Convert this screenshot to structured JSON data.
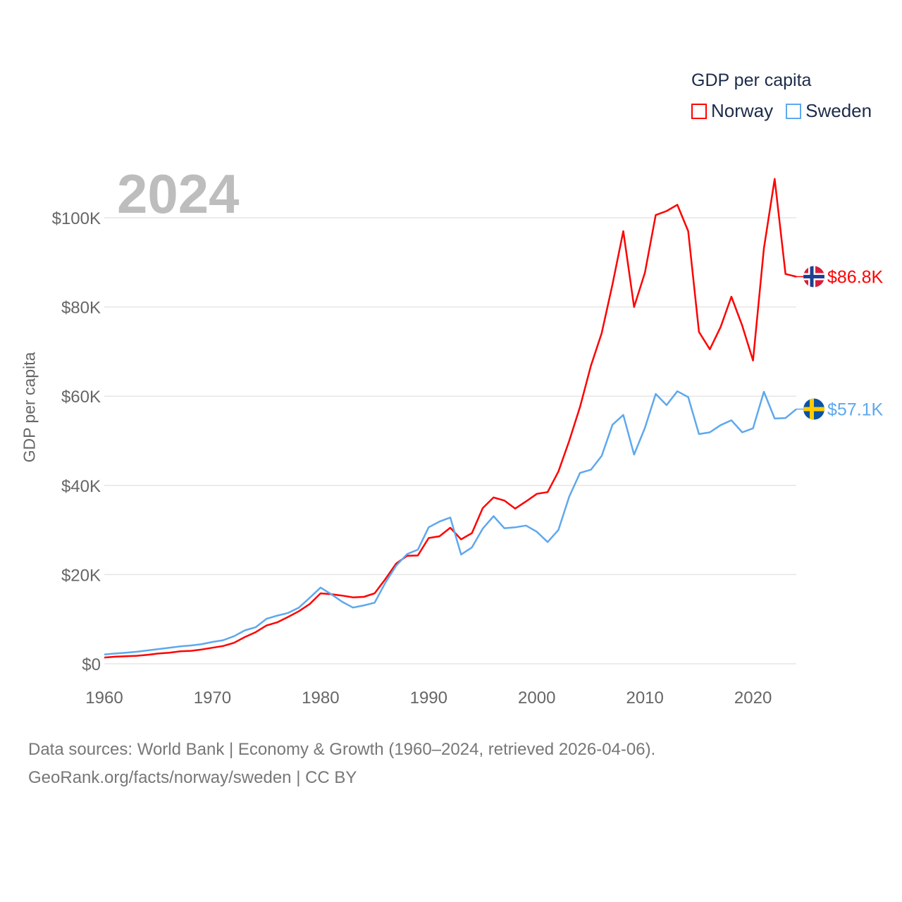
{
  "chart_data": {
    "type": "line",
    "title": "GDP per capita",
    "ylabel": "GDP per capita",
    "xlabel": "",
    "year_label": "2024",
    "xlim": [
      1960,
      2024
    ],
    "ylim": [
      0,
      110
    ],
    "grid": true,
    "legend_placement": "top-right",
    "x_ticks": [
      "1960",
      "1970",
      "1980",
      "1990",
      "2000",
      "2010",
      "2020"
    ],
    "y_ticks": [
      {
        "value": 0,
        "label": "$0"
      },
      {
        "value": 20,
        "label": "$20K"
      },
      {
        "value": 40,
        "label": "$40K"
      },
      {
        "value": 60,
        "label": "$60K"
      },
      {
        "value": 80,
        "label": "$80K"
      },
      {
        "value": 100,
        "label": "$100K"
      }
    ],
    "units": "thousand USD",
    "series": [
      {
        "name": "Norway",
        "color": "#ff0000",
        "end_label": "$86.8K",
        "flag": "norway-flag",
        "values": [
          1.4,
          1.6,
          1.7,
          1.8,
          2.0,
          2.3,
          2.5,
          2.8,
          2.9,
          3.2,
          3.6,
          4.0,
          4.7,
          6.0,
          7.1,
          8.6,
          9.3,
          10.5,
          11.8,
          13.4,
          15.8,
          15.6,
          15.3,
          14.9,
          15.0,
          15.8,
          19.0,
          22.5,
          24.2,
          24.3,
          28.2,
          28.6,
          30.5,
          27.9,
          29.3,
          34.9,
          37.3,
          36.6,
          34.8,
          36.4,
          38.1,
          38.5,
          43.1,
          50.0,
          57.6,
          66.8,
          74.1,
          85.1,
          97.0,
          80.0,
          87.7,
          100.6,
          101.5,
          102.9,
          97.0,
          74.4,
          70.5,
          75.5,
          82.3,
          75.8,
          68.0,
          93.1,
          108.7,
          87.4,
          86.8
        ]
      },
      {
        "name": "Sweden",
        "color": "#5ea8ee",
        "end_label": "$57.1K",
        "flag": "sweden-flag",
        "values": [
          2.1,
          2.3,
          2.5,
          2.7,
          3.0,
          3.3,
          3.6,
          3.9,
          4.1,
          4.4,
          4.9,
          5.3,
          6.2,
          7.5,
          8.2,
          10.1,
          10.8,
          11.4,
          12.6,
          14.8,
          17.1,
          15.6,
          13.9,
          12.6,
          13.1,
          13.7,
          18.2,
          22.0,
          24.6,
          25.6,
          30.6,
          31.9,
          32.8,
          24.5,
          26.1,
          30.3,
          33.1,
          30.4,
          30.6,
          31.0,
          29.6,
          27.3,
          30.0,
          37.5,
          42.8,
          43.5,
          46.6,
          53.6,
          55.8,
          46.9,
          52.9,
          60.5,
          58.0,
          61.1,
          59.8,
          51.5,
          51.9,
          53.5,
          54.6,
          51.9,
          52.8,
          61.0,
          55.0,
          55.1,
          57.1
        ]
      }
    ]
  },
  "footer": {
    "line1": "Data sources: World Bank | Economy & Growth (1960–2024, retrieved 2026-04-06).",
    "line2": "GeoRank.org/facts/norway/sweden | CC BY"
  }
}
